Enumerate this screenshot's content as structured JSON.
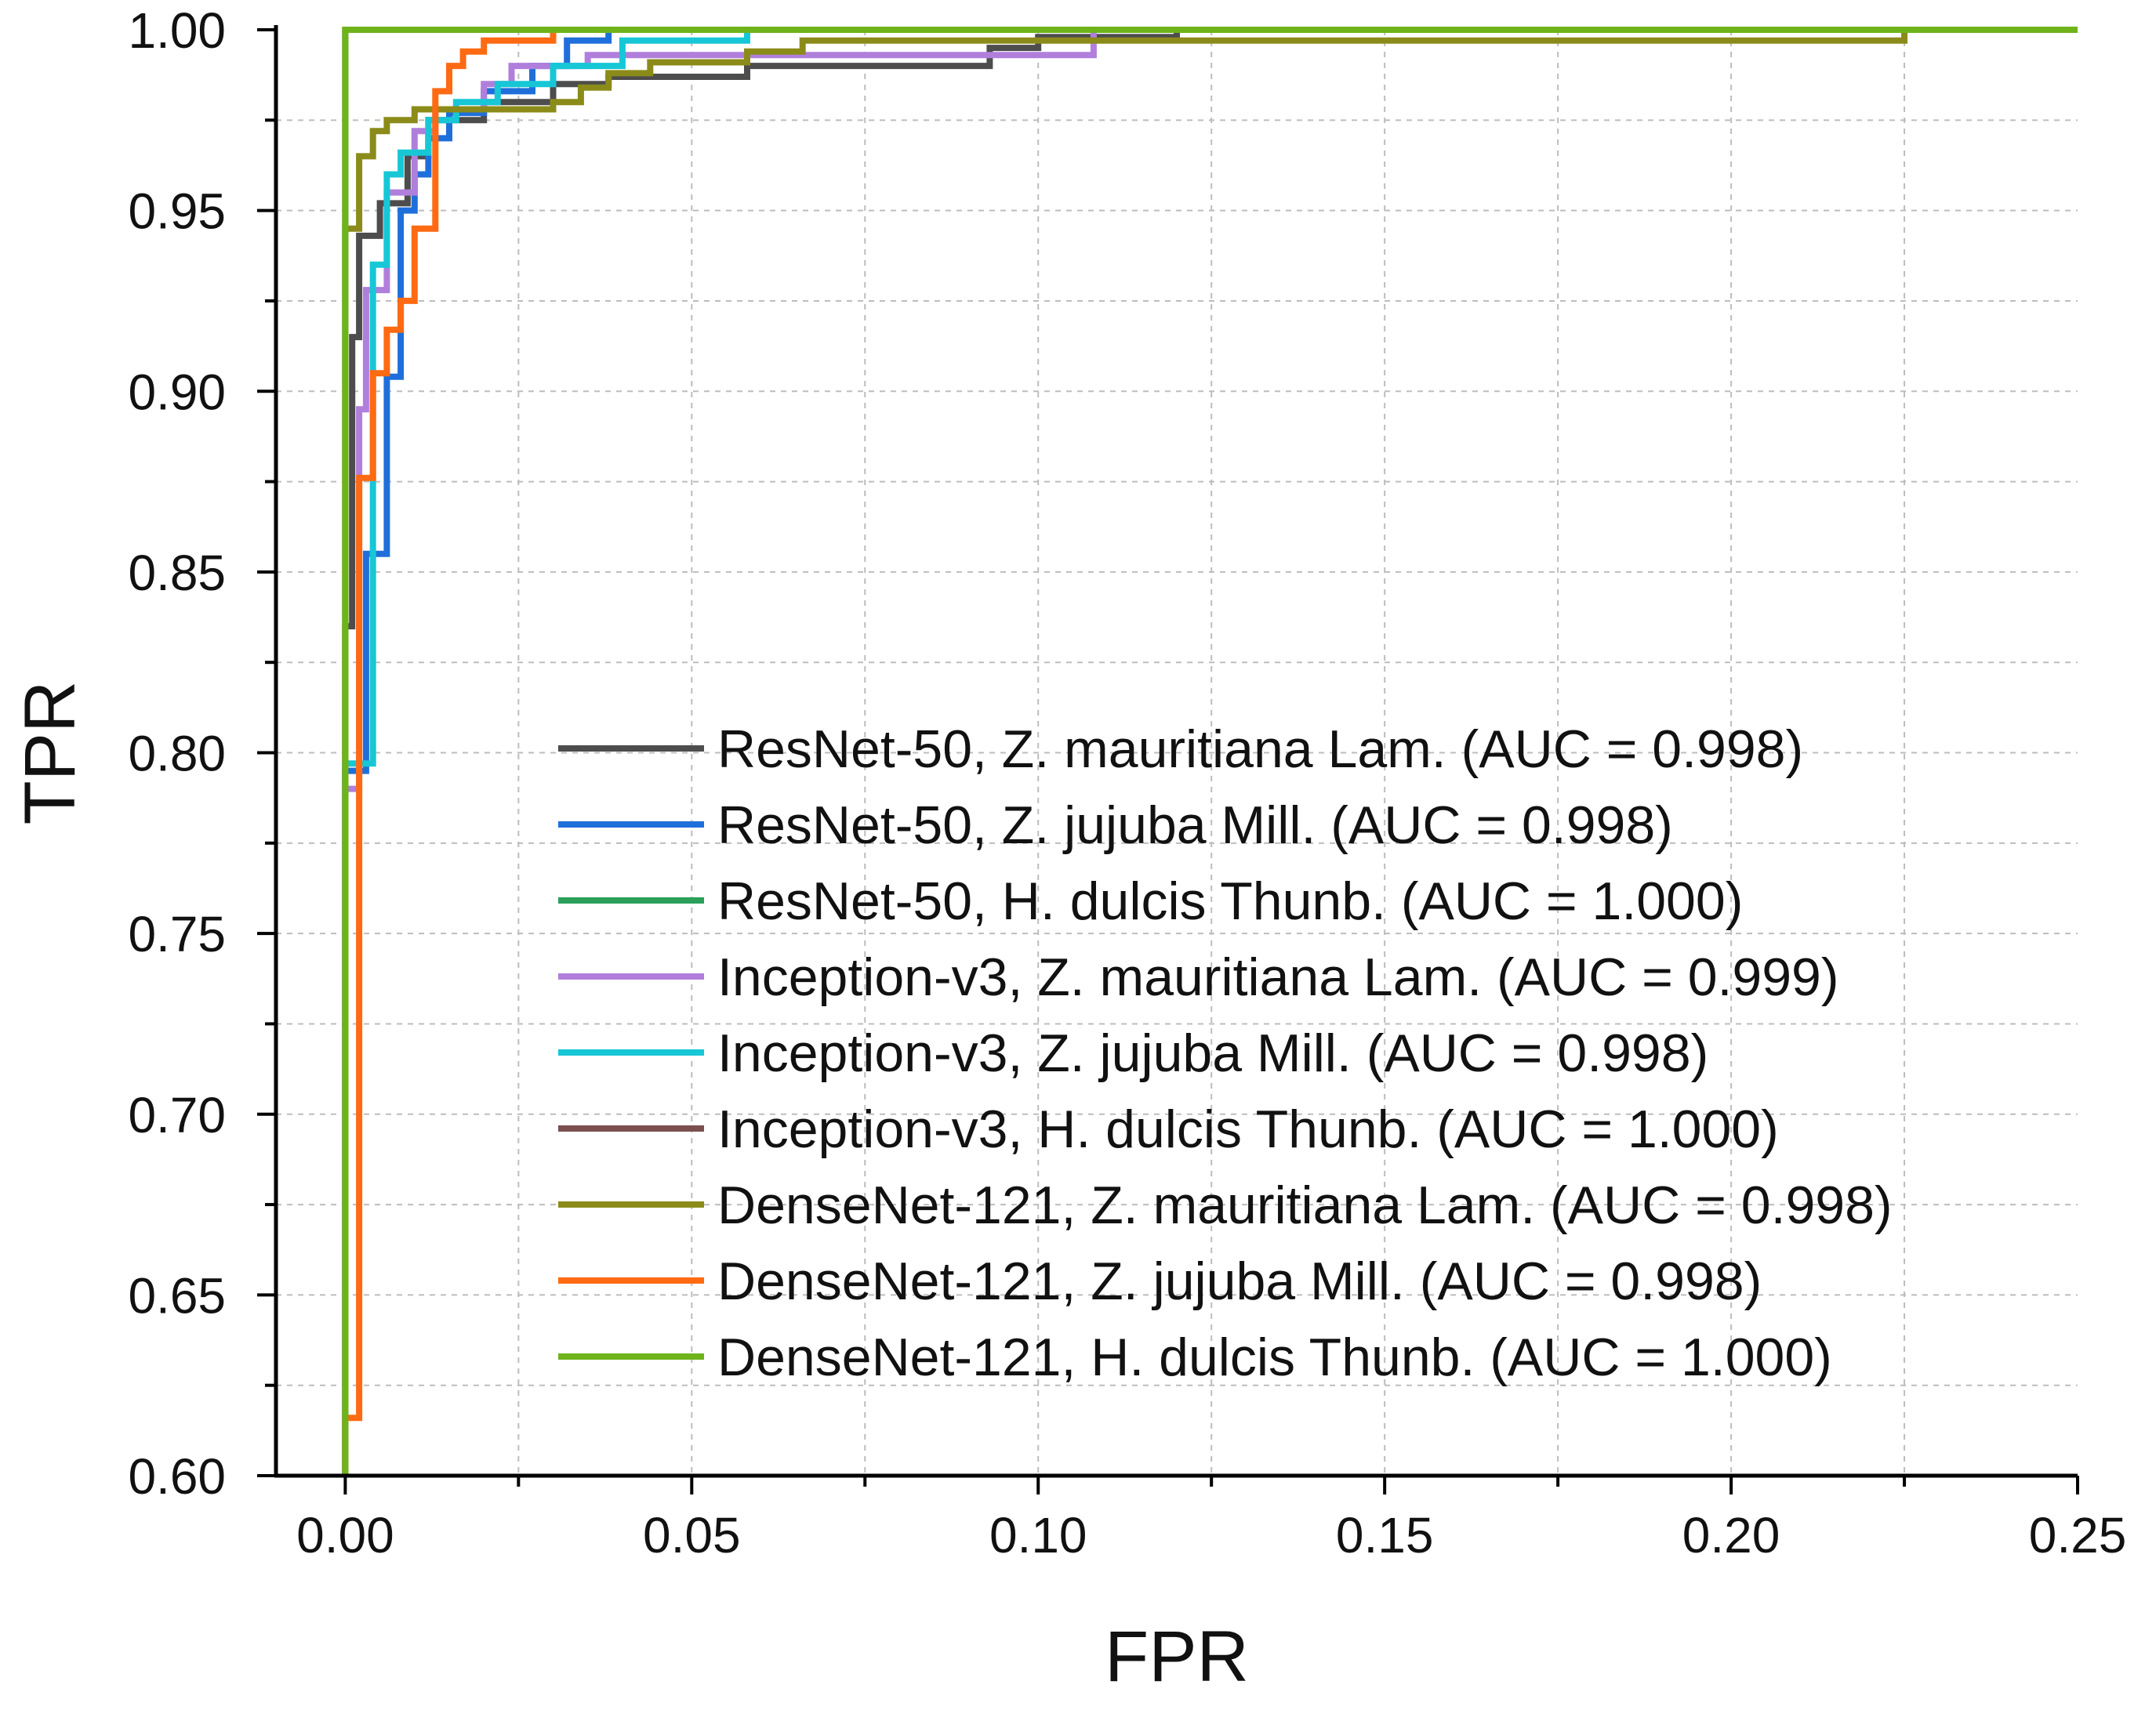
{
  "chart_data": {
    "type": "line",
    "subtype": "roc-step",
    "title": "",
    "xlabel": "FPR",
    "ylabel": "TPR",
    "xlim": [
      -0.01,
      0.25
    ],
    "ylim": [
      0.6,
      1.0
    ],
    "xticks": [
      0.0,
      0.05,
      0.1,
      0.15,
      0.2,
      0.25
    ],
    "yticks": [
      0.6,
      0.65,
      0.7,
      0.75,
      0.8,
      0.85,
      0.9,
      0.95,
      1.0
    ],
    "xtick_labels": [
      "0.00",
      "0.05",
      "0.10",
      "0.15",
      "0.20",
      "0.25"
    ],
    "ytick_labels": [
      "0.60",
      "0.65",
      "0.70",
      "0.75",
      "0.80",
      "0.85",
      "0.90",
      "0.95",
      "1.00"
    ],
    "grid": true,
    "legend_position": "lower-right",
    "series": [
      {
        "name": "ResNet-50, Z. mauritiana Lam. (AUC = 0.998)",
        "color": "#4d4d4d",
        "points": [
          [
            0,
            0.6
          ],
          [
            0,
            0.835
          ],
          [
            0.001,
            0.835
          ],
          [
            0.001,
            0.915
          ],
          [
            0.002,
            0.915
          ],
          [
            0.002,
            0.943
          ],
          [
            0.005,
            0.943
          ],
          [
            0.005,
            0.952
          ],
          [
            0.009,
            0.952
          ],
          [
            0.009,
            0.965
          ],
          [
            0.012,
            0.965
          ],
          [
            0.012,
            0.975
          ],
          [
            0.02,
            0.975
          ],
          [
            0.02,
            0.98
          ],
          [
            0.03,
            0.98
          ],
          [
            0.03,
            0.985
          ],
          [
            0.038,
            0.985
          ],
          [
            0.038,
            0.987
          ],
          [
            0.058,
            0.987
          ],
          [
            0.058,
            0.99
          ],
          [
            0.093,
            0.99
          ],
          [
            0.093,
            0.995
          ],
          [
            0.1,
            0.995
          ],
          [
            0.1,
            0.998
          ],
          [
            0.12,
            0.998
          ],
          [
            0.12,
            1.0
          ],
          [
            0.25,
            1.0
          ]
        ]
      },
      {
        "name": "ResNet-50, Z. jujuba Mill. (AUC = 0.998)",
        "color": "#1f6fdb",
        "points": [
          [
            0,
            0.6
          ],
          [
            0,
            0.795
          ],
          [
            0.003,
            0.795
          ],
          [
            0.003,
            0.855
          ],
          [
            0.006,
            0.855
          ],
          [
            0.006,
            0.904
          ],
          [
            0.008,
            0.904
          ],
          [
            0.008,
            0.95
          ],
          [
            0.01,
            0.95
          ],
          [
            0.01,
            0.96
          ],
          [
            0.012,
            0.96
          ],
          [
            0.012,
            0.97
          ],
          [
            0.015,
            0.97
          ],
          [
            0.015,
            0.977
          ],
          [
            0.02,
            0.977
          ],
          [
            0.02,
            0.983
          ],
          [
            0.027,
            0.983
          ],
          [
            0.027,
            0.99
          ],
          [
            0.032,
            0.99
          ],
          [
            0.032,
            0.997
          ],
          [
            0.038,
            0.997
          ],
          [
            0.038,
            1.0
          ],
          [
            0.25,
            1.0
          ]
        ]
      },
      {
        "name": "ResNet-50, H. dulcis Thunb. (AUC = 1.000)",
        "color": "#2ca05a",
        "points": [
          [
            0,
            0.6
          ],
          [
            0,
            1.0
          ],
          [
            0.25,
            1.0
          ]
        ]
      },
      {
        "name": "Inception-v3, Z. mauritiana Lam. (AUC = 0.999)",
        "color": "#b07fdc",
        "points": [
          [
            0,
            0.6
          ],
          [
            0,
            0.79
          ],
          [
            0.002,
            0.79
          ],
          [
            0.002,
            0.895
          ],
          [
            0.003,
            0.895
          ],
          [
            0.003,
            0.928
          ],
          [
            0.006,
            0.928
          ],
          [
            0.006,
            0.955
          ],
          [
            0.01,
            0.955
          ],
          [
            0.01,
            0.972
          ],
          [
            0.013,
            0.972
          ],
          [
            0.013,
            0.978
          ],
          [
            0.02,
            0.978
          ],
          [
            0.02,
            0.985
          ],
          [
            0.024,
            0.985
          ],
          [
            0.024,
            0.99
          ],
          [
            0.035,
            0.99
          ],
          [
            0.035,
            0.993
          ],
          [
            0.108,
            0.993
          ],
          [
            0.108,
            1.0
          ],
          [
            0.25,
            1.0
          ]
        ]
      },
      {
        "name": "Inception-v3, Z. jujuba Mill. (AUC = 0.998)",
        "color": "#17c7d6",
        "points": [
          [
            0,
            0.6
          ],
          [
            0,
            0.797
          ],
          [
            0.004,
            0.797
          ],
          [
            0.004,
            0.935
          ],
          [
            0.006,
            0.935
          ],
          [
            0.006,
            0.96
          ],
          [
            0.008,
            0.96
          ],
          [
            0.008,
            0.966
          ],
          [
            0.012,
            0.966
          ],
          [
            0.012,
            0.975
          ],
          [
            0.016,
            0.975
          ],
          [
            0.016,
            0.98
          ],
          [
            0.022,
            0.98
          ],
          [
            0.022,
            0.985
          ],
          [
            0.03,
            0.985
          ],
          [
            0.03,
            0.99
          ],
          [
            0.04,
            0.99
          ],
          [
            0.04,
            0.997
          ],
          [
            0.058,
            0.997
          ],
          [
            0.058,
            1.0
          ],
          [
            0.25,
            1.0
          ]
        ]
      },
      {
        "name": "Inception-v3, H. dulcis Thunb. (AUC = 1.000)",
        "color": "#7b4f4f",
        "points": [
          [
            0,
            0.6
          ],
          [
            0,
            1.0
          ],
          [
            0.25,
            1.0
          ]
        ]
      },
      {
        "name": "DenseNet-121, Z. mauritiana Lam. (AUC = 0.998)",
        "color": "#8b8b1a",
        "points": [
          [
            0,
            0.6
          ],
          [
            0,
            0.945
          ],
          [
            0.002,
            0.945
          ],
          [
            0.002,
            0.965
          ],
          [
            0.004,
            0.965
          ],
          [
            0.004,
            0.972
          ],
          [
            0.006,
            0.972
          ],
          [
            0.006,
            0.975
          ],
          [
            0.01,
            0.975
          ],
          [
            0.01,
            0.978
          ],
          [
            0.03,
            0.978
          ],
          [
            0.03,
            0.98
          ],
          [
            0.034,
            0.98
          ],
          [
            0.034,
            0.984
          ],
          [
            0.038,
            0.984
          ],
          [
            0.038,
            0.988
          ],
          [
            0.044,
            0.988
          ],
          [
            0.044,
            0.991
          ],
          [
            0.058,
            0.991
          ],
          [
            0.058,
            0.994
          ],
          [
            0.066,
            0.994
          ],
          [
            0.066,
            0.997
          ],
          [
            0.225,
            0.997
          ],
          [
            0.225,
            1.0
          ],
          [
            0.25,
            1.0
          ]
        ]
      },
      {
        "name": "DenseNet-121, Z. jujuba Mill. (AUC = 0.998)",
        "color": "#ff6a13",
        "points": [
          [
            0,
            0.6
          ],
          [
            0,
            0.616
          ],
          [
            0.002,
            0.616
          ],
          [
            0.002,
            0.876
          ],
          [
            0.004,
            0.876
          ],
          [
            0.004,
            0.905
          ],
          [
            0.006,
            0.905
          ],
          [
            0.006,
            0.917
          ],
          [
            0.008,
            0.917
          ],
          [
            0.008,
            0.925
          ],
          [
            0.01,
            0.925
          ],
          [
            0.01,
            0.945
          ],
          [
            0.013,
            0.945
          ],
          [
            0.013,
            0.983
          ],
          [
            0.015,
            0.983
          ],
          [
            0.015,
            0.99
          ],
          [
            0.017,
            0.99
          ],
          [
            0.017,
            0.994
          ],
          [
            0.02,
            0.994
          ],
          [
            0.02,
            0.997
          ],
          [
            0.03,
            0.997
          ],
          [
            0.03,
            1.0
          ],
          [
            0.25,
            1.0
          ]
        ]
      },
      {
        "name": "DenseNet-121, H. dulcis Thunb. (AUC = 1.000)",
        "color": "#6fb31b",
        "points": [
          [
            0,
            0.6
          ],
          [
            0,
            1.0
          ],
          [
            0.25,
            1.0
          ]
        ]
      }
    ]
  }
}
